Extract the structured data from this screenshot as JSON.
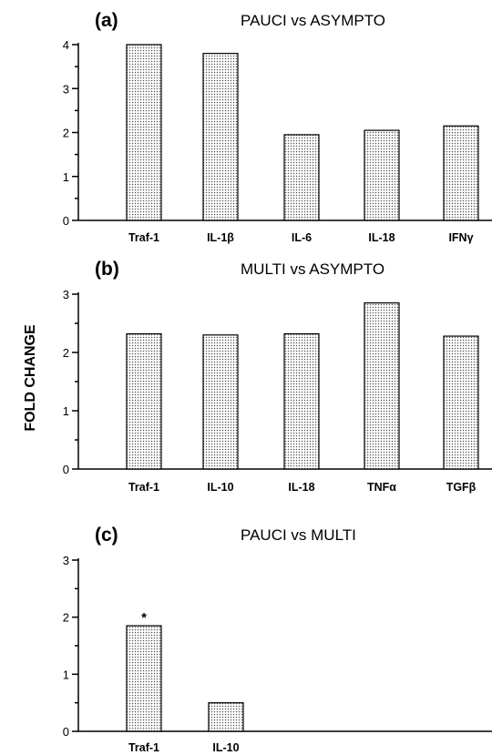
{
  "ylabel": "FOLD CHANGE",
  "colors": {
    "bar_fill": "#d9d9d9",
    "bar_stroke": "#000000",
    "axis": "#000000"
  },
  "chart_data": [
    {
      "type": "bar",
      "panel_label": "(a)",
      "title": "PAUCI  vs ASYMPTO",
      "categories": [
        "Traf-1",
        "IL-1β",
        "IL-6",
        "IL-18",
        "IFNγ"
      ],
      "values": [
        4.0,
        3.8,
        1.95,
        2.05,
        2.15
      ],
      "yticks": [
        "0",
        "1",
        "2",
        "3",
        "4"
      ],
      "ylim": [
        0,
        4
      ]
    },
    {
      "type": "bar",
      "panel_label": "(b)",
      "title": "MULTI  vs ASYMPTO",
      "categories": [
        "Traf-1",
        "IL-10",
        "IL-18",
        "TNFα",
        "TGFβ"
      ],
      "values": [
        2.32,
        2.3,
        2.32,
        2.85,
        2.28
      ],
      "yticks": [
        "0",
        "1",
        "2",
        "3"
      ],
      "ylim": [
        0,
        3
      ]
    },
    {
      "type": "bar",
      "panel_label": "(c)",
      "title": "PAUCI  vs MULTI",
      "categories": [
        "Traf-1",
        "IL-10"
      ],
      "values": [
        1.85,
        0.5
      ],
      "yticks": [
        "0",
        "1",
        "2",
        "3"
      ],
      "ylim": [
        0,
        3
      ],
      "annotations": [
        {
          "category": "Traf-1",
          "text": "*"
        }
      ]
    }
  ]
}
